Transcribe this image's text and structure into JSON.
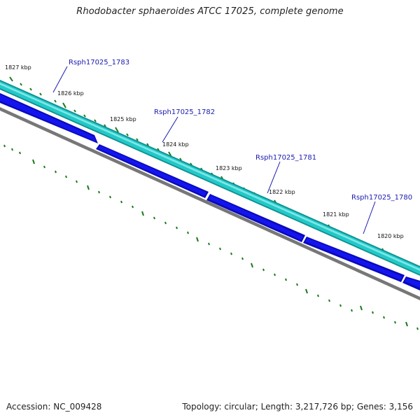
{
  "title": "Rhodobacter sphaeroides ATCC 17025, complete genome",
  "footer": {
    "accession": "Accession: NC_009428",
    "summary": "Topology: circular; Length: 3,217,726 bp; Genes: 3,156"
  },
  "colors": {
    "forward_strand_cds": "#1fc4c4",
    "reverse_strand_cds": "#0000ee",
    "backbone": "#777777",
    "tick": "#1a7a1a",
    "gene_label": "#1a1ab0"
  },
  "position_labels": [
    "1827 kbp",
    "1826 kbp",
    "1825 kbp",
    "1824 kbp",
    "1823 kbp",
    "1822 kbp",
    "1821 kbp",
    "1820 kbp"
  ],
  "gene_labels": [
    "Rsph17025_1783",
    "Rsph17025_1782",
    "Rsph17025_1781",
    "Rsph17025_1780"
  ]
}
